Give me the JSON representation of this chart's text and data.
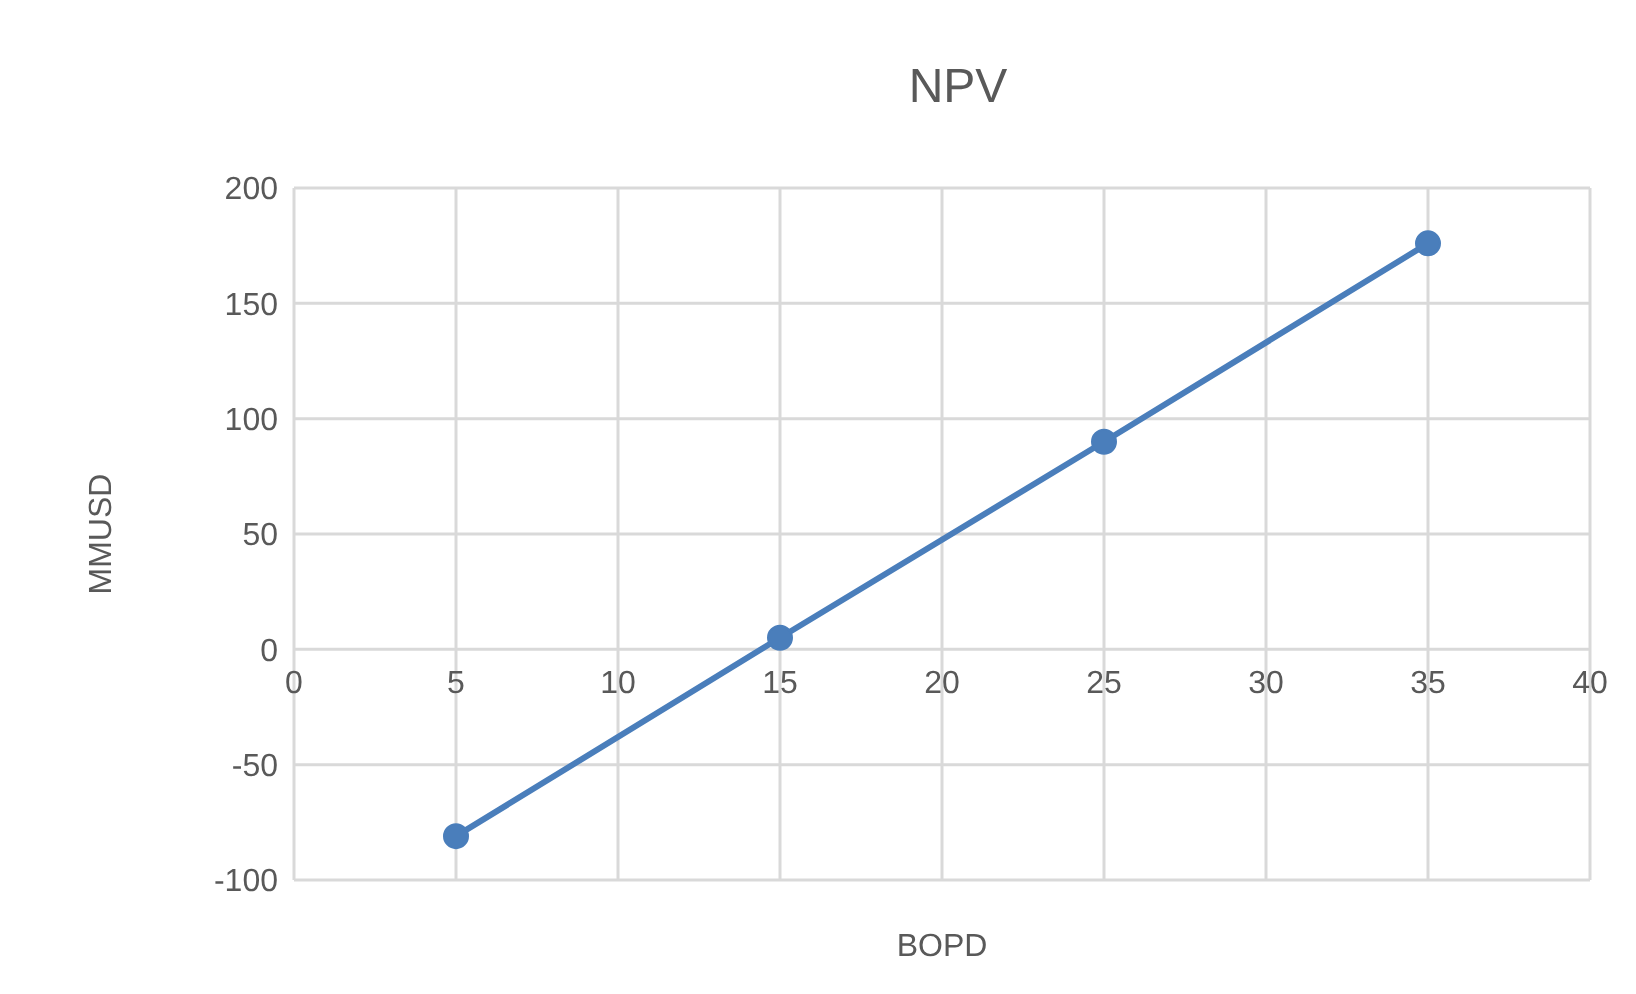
{
  "chart_data": {
    "type": "line",
    "title": "NPV",
    "xlabel": "BOPD",
    "ylabel": "MMUSD",
    "x": [
      5,
      15,
      25,
      35
    ],
    "series": [
      {
        "color": "#4a7ebb",
        "values": [
          -81,
          5,
          90,
          176
        ]
      }
    ],
    "xlim": [
      0,
      40
    ],
    "xticks": [
      0,
      5,
      10,
      15,
      20,
      25,
      30,
      35,
      40
    ],
    "ylim": [
      -100,
      200
    ],
    "yticks": [
      -100,
      -50,
      0,
      50,
      100,
      150,
      200
    ],
    "grid": true,
    "legend": false,
    "marker": "circle",
    "line_style": "solid"
  }
}
